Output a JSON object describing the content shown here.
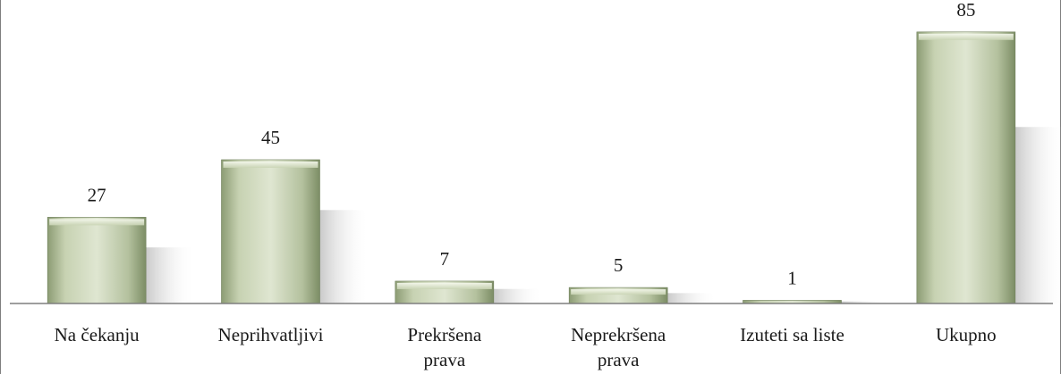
{
  "chart_data": {
    "type": "bar",
    "categories": [
      [
        "Na čekanju"
      ],
      [
        "Neprihvatljivi"
      ],
      [
        "Prekršena",
        "prava"
      ],
      [
        "Neprekršena",
        "prava"
      ],
      [
        "Izuteti sa liste"
      ],
      [
        "Ukupno"
      ]
    ],
    "values": [
      27,
      45,
      7,
      5,
      1,
      85
    ],
    "data_labels": [
      "27",
      "45",
      "7",
      "5",
      "1",
      "85"
    ],
    "ylim": [
      0,
      95
    ],
    "grid": false,
    "legend": "none",
    "colors": {
      "bar_light": "#e9efdc",
      "bar_mid": "#b7c4a0",
      "bar_dark": "#7f9168",
      "axis": "#7f7f7f"
    }
  }
}
